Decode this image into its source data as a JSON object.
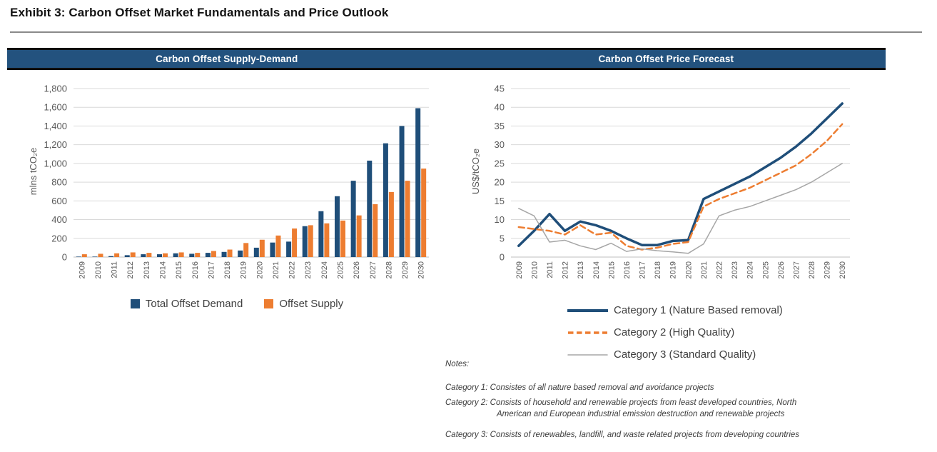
{
  "exhibit": {
    "title": "Exhibit 3: Carbon Offset Market Fundamentals and Price Outlook"
  },
  "colors": {
    "header_bar": "#23527E",
    "demand_blue": "#1F4E79",
    "supply_orange": "#ED7D31",
    "standard_gray": "#A6A6A6",
    "gridline": "#D9D9D9",
    "axis_line": "#BFBFBF",
    "axis_text": "#595959",
    "legend_text": "#3F3F3F"
  },
  "chart_data": [
    {
      "type": "bar",
      "title": "Carbon Offset Supply-Demand",
      "ylabel": "mlns tCO₂e",
      "xlabel": "",
      "ylim": [
        0,
        1800
      ],
      "ytick_step": 200,
      "grid": true,
      "legend_position": "bottom",
      "categories": [
        "2009",
        "2010",
        "2011",
        "2012",
        "2013",
        "2014",
        "2015",
        "2016",
        "2017",
        "2018",
        "2019",
        "2020",
        "2021",
        "2022",
        "2023",
        "2024",
        "2025",
        "2026",
        "2027",
        "2028",
        "2029",
        "2030"
      ],
      "series": [
        {
          "name": "Total Offset Demand",
          "color": "#1F4E79",
          "values": [
            5,
            5,
            10,
            20,
            30,
            30,
            40,
            35,
            45,
            55,
            70,
            100,
            155,
            165,
            330,
            490,
            650,
            815,
            1030,
            1215,
            1400,
            1590
          ]
        },
        {
          "name": "Offset Supply",
          "color": "#ED7D31",
          "values": [
            30,
            35,
            40,
            50,
            45,
            40,
            50,
            45,
            65,
            80,
            150,
            185,
            230,
            305,
            340,
            360,
            390,
            445,
            565,
            695,
            815,
            945
          ]
        }
      ]
    },
    {
      "type": "line",
      "title": "Carbon Offset Price Forecast",
      "ylabel": "US$/tCO₂e",
      "xlabel": "",
      "ylim": [
        0,
        45
      ],
      "ytick_step": 5,
      "grid": true,
      "legend_position": "bottom",
      "categories": [
        "2009",
        "2010",
        "2011",
        "2012",
        "2013",
        "2014",
        "2015",
        "2016",
        "2017",
        "2018",
        "2019",
        "2020",
        "2021",
        "2022",
        "2023",
        "2024",
        "2025",
        "2026",
        "2027",
        "2028",
        "2029",
        "2030"
      ],
      "series": [
        {
          "name": "Category 1 (Nature Based removal)",
          "color": "#1F4E79",
          "style": "solid",
          "width": 3.5,
          "legend_sample_width": 4,
          "values": [
            3,
            7,
            11.5,
            7,
            9.5,
            8.5,
            7,
            5,
            3.2,
            3.2,
            4.3,
            4.5,
            15.5,
            17.5,
            19.5,
            21.5,
            24,
            26.5,
            29.5,
            33,
            37,
            41
          ]
        },
        {
          "name": "Category 2 (High Quality)",
          "color": "#ED7D31",
          "style": "dashed",
          "width": 2.5,
          "legend_sample_width": 3.5,
          "values": [
            8,
            7.5,
            7,
            6,
            8.5,
            6,
            6.5,
            3,
            2,
            2.5,
            3.5,
            4,
            13.5,
            15.5,
            17,
            18.5,
            20.5,
            22.5,
            24.5,
            27.5,
            31,
            35.5
          ]
        },
        {
          "name": "Category 3 (Standard Quality)",
          "color": "#A6A6A6",
          "style": "solid",
          "width": 1.5,
          "legend_sample_width": 1.5,
          "values": [
            13,
            11,
            4,
            4.5,
            3,
            2,
            3.7,
            1.5,
            2.2,
            1.7,
            1.4,
            1,
            3.5,
            11,
            12.5,
            13.5,
            15,
            16.5,
            18,
            20,
            22.5,
            25
          ]
        }
      ]
    }
  ],
  "notes": {
    "label": "Notes:",
    "lines": [
      "Category 1: Consistes of all nature based removal and avoidance projects",
      "Category 2: Consists of household and renewable projects from least developed countries, North",
      "American and European industrial emission destruction and renewable projects",
      "Category 3: Consists of renewables, landfill, and waste related projects from developing countries"
    ]
  }
}
